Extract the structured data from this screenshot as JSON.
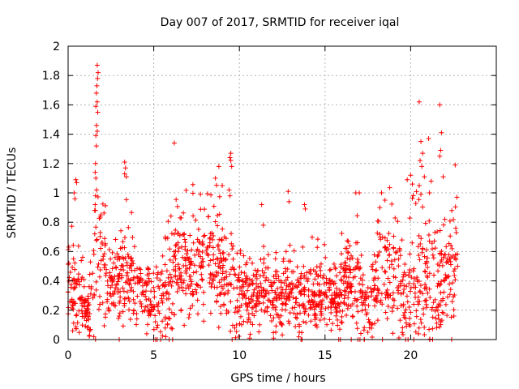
{
  "chart_data": {
    "type": "scatter",
    "title": "Day 007 of 2017, SRMTID for receiver iqal",
    "xlabel": "GPS time / hours",
    "ylabel": "SRMTID / TECUs",
    "xlim": [
      0,
      25
    ],
    "ylim": [
      0,
      2
    ],
    "x_ticks": [
      0,
      5,
      10,
      15,
      20
    ],
    "y_ticks": [
      0,
      0.2,
      0.4,
      0.6,
      0.8,
      1,
      1.2,
      1.4,
      1.6,
      1.8,
      2
    ],
    "x_tick_labels": [
      "0",
      "5",
      "10",
      "15",
      "20"
    ],
    "y_tick_labels": [
      "0",
      "0.2",
      "0.4",
      "0.6",
      "0.8",
      "1",
      "1.2",
      "1.4",
      "1.6",
      "1.8",
      "2"
    ],
    "grid": true,
    "marker": "plus",
    "series": [
      {
        "name": "SRMTID",
        "color": "#ff0000",
        "x_range": [
          0,
          22.75
        ],
        "sample_count": 1700,
        "seed": 7,
        "profile": [
          {
            "hour": 0.0,
            "median": 0.42,
            "spread": 0.55
          },
          {
            "hour": 0.6,
            "median": 0.25,
            "spread": 0.45
          },
          {
            "hour": 1.2,
            "median": 0.2,
            "spread": 0.3
          },
          {
            "hour": 1.8,
            "median": 0.6,
            "spread": 1.0
          },
          {
            "hour": 2.5,
            "median": 0.32,
            "spread": 0.45
          },
          {
            "hour": 3.3,
            "median": 0.45,
            "spread": 0.7
          },
          {
            "hour": 4.2,
            "median": 0.32,
            "spread": 0.45
          },
          {
            "hour": 5.4,
            "median": 0.2,
            "spread": 0.55
          },
          {
            "hour": 6.3,
            "median": 0.5,
            "spread": 0.8
          },
          {
            "hour": 7.5,
            "median": 0.5,
            "spread": 0.6
          },
          {
            "hour": 8.7,
            "median": 0.55,
            "spread": 0.8
          },
          {
            "hour": 9.6,
            "median": 0.35,
            "spread": 0.55
          },
          {
            "hour": 11.0,
            "median": 0.32,
            "spread": 0.4
          },
          {
            "hour": 12.5,
            "median": 0.3,
            "spread": 0.45
          },
          {
            "hour": 14.0,
            "median": 0.3,
            "spread": 0.45
          },
          {
            "hour": 15.8,
            "median": 0.3,
            "spread": 0.4
          },
          {
            "hour": 16.3,
            "median": 0.45,
            "spread": 0.55
          },
          {
            "hour": 17.0,
            "median": 0.3,
            "spread": 0.6
          },
          {
            "hour": 17.6,
            "median": 0.2,
            "spread": 0.4
          },
          {
            "hour": 18.3,
            "median": 0.5,
            "spread": 0.85
          },
          {
            "hour": 19.5,
            "median": 0.3,
            "spread": 0.55
          },
          {
            "hour": 20.6,
            "median": 0.45,
            "spread": 0.9
          },
          {
            "hour": 21.5,
            "median": 0.35,
            "spread": 0.8
          },
          {
            "hour": 22.75,
            "median": 0.4,
            "spread": 0.6
          }
        ],
        "highlight_points": [
          [
            1.7,
            1.87
          ],
          [
            1.75,
            1.82
          ],
          [
            1.72,
            1.78
          ],
          [
            1.68,
            1.73
          ],
          [
            1.65,
            1.68
          ],
          [
            1.7,
            1.62
          ],
          [
            1.62,
            1.59
          ],
          [
            1.73,
            1.55
          ],
          [
            1.66,
            1.46
          ],
          [
            1.7,
            1.42
          ],
          [
            1.62,
            1.39
          ],
          [
            1.65,
            1.32
          ],
          [
            1.6,
            1.2
          ],
          [
            1.58,
            1.14
          ],
          [
            1.62,
            1.1
          ],
          [
            1.66,
            1.02
          ],
          [
            1.6,
            0.98
          ],
          [
            1.58,
            0.92
          ],
          [
            1.55,
            0.88
          ],
          [
            6.2,
            1.34
          ],
          [
            3.3,
            1.21
          ],
          [
            3.35,
            1.17
          ],
          [
            3.3,
            1.13
          ],
          [
            3.4,
            1.11
          ],
          [
            0.45,
            1.09
          ],
          [
            0.5,
            1.07
          ],
          [
            0.35,
            1.0
          ],
          [
            0.4,
            0.96
          ],
          [
            8.8,
            1.18
          ],
          [
            8.6,
            1.1
          ],
          [
            9.0,
            1.05
          ],
          [
            9.5,
            1.27
          ],
          [
            9.45,
            1.24
          ],
          [
            9.5,
            1.22
          ],
          [
            9.55,
            1.18
          ],
          [
            9.4,
            1.02
          ],
          [
            9.45,
            0.98
          ],
          [
            12.85,
            1.01
          ],
          [
            13.8,
            0.92
          ],
          [
            13.85,
            0.89
          ],
          [
            12.9,
            0.94
          ],
          [
            11.3,
            0.92
          ],
          [
            11.4,
            0.78
          ],
          [
            17.0,
            1.0
          ],
          [
            16.8,
            1.0
          ],
          [
            18.3,
            1.0
          ],
          [
            18.5,
            0.95
          ],
          [
            18.2,
            0.9
          ],
          [
            20.0,
            1.12
          ],
          [
            19.8,
            1.09
          ],
          [
            20.1,
            1.06
          ],
          [
            20.5,
            1.62
          ],
          [
            20.6,
            1.35
          ],
          [
            20.7,
            1.27
          ],
          [
            20.55,
            1.22
          ],
          [
            20.65,
            1.18
          ],
          [
            20.8,
            1.11
          ],
          [
            20.5,
            1.05
          ],
          [
            21.05,
            1.37
          ],
          [
            21.2,
            1.08
          ],
          [
            21.1,
            1.0
          ],
          [
            21.7,
            1.6
          ],
          [
            21.8,
            1.41
          ],
          [
            21.75,
            1.29
          ],
          [
            21.7,
            1.25
          ],
          [
            21.9,
            1.11
          ],
          [
            22.6,
            1.19
          ],
          [
            22.7,
            0.97
          ],
          [
            22.4,
            0.88
          ],
          [
            1.5,
            0.02
          ],
          [
            1.6,
            0.0
          ],
          [
            5.0,
            0.0
          ],
          [
            5.4,
            0.0
          ],
          [
            5.7,
            0.02
          ],
          [
            5.9,
            0.0
          ],
          [
            6.1,
            0.0
          ],
          [
            15.8,
            0.0
          ],
          [
            15.9,
            0.0
          ],
          [
            17.5,
            0.05
          ],
          [
            17.6,
            0.08
          ],
          [
            17.7,
            0.1
          ],
          [
            10.6,
            0.01
          ],
          [
            12.0,
            0.01
          ],
          [
            13.5,
            0.05
          ],
          [
            14.5,
            0.1
          ]
        ]
      }
    ]
  }
}
